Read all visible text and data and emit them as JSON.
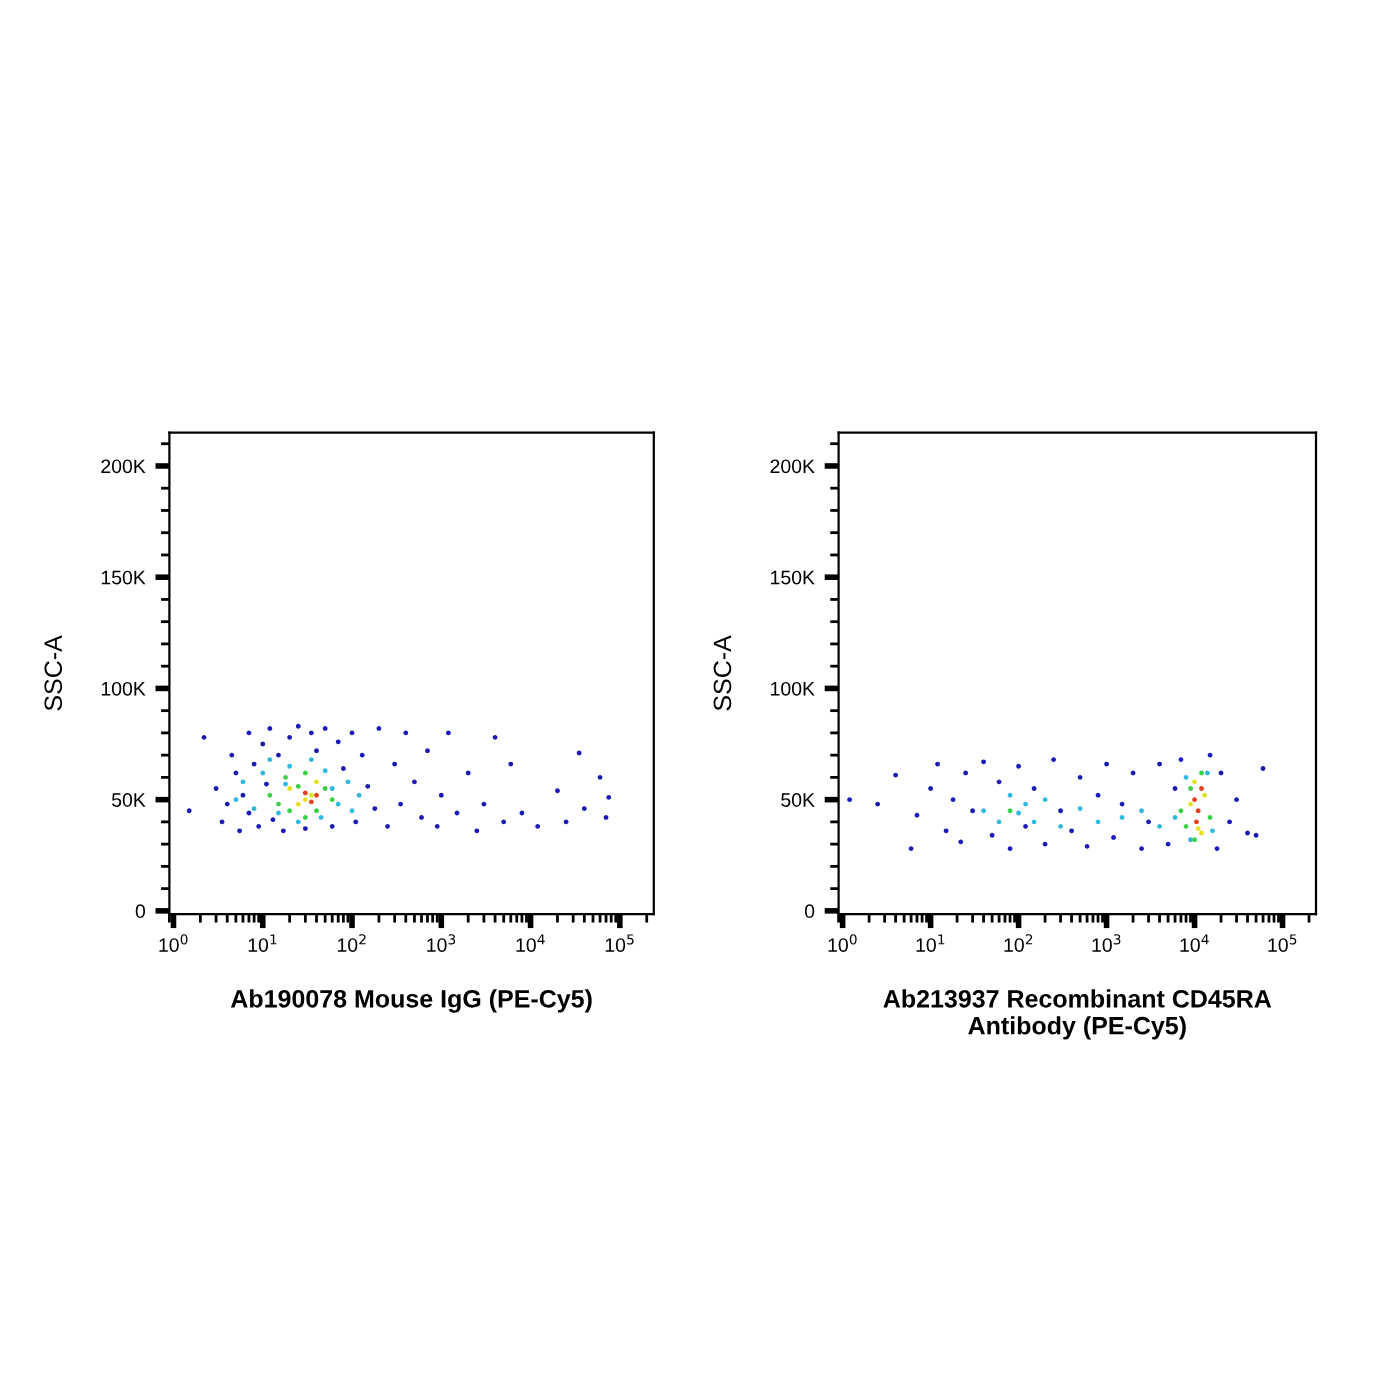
{
  "chart_data": [
    {
      "type": "scatter",
      "xlabel": "Ab190078 Mouse IgG (PE-Cy5)",
      "ylabel": "SSC-A",
      "log": "x",
      "marker": "circle",
      "grid": false,
      "legend": false,
      "xlim": [
        0.9,
        240000
      ],
      "ylim": [
        -1500,
        215000
      ],
      "xticks": [
        {
          "value": 1,
          "label": "10$^{0}$"
        },
        {
          "value": 10,
          "label": "10$^{1}$"
        },
        {
          "value": 100,
          "label": "10$^{2}$"
        },
        {
          "value": 1000,
          "label": "10$^{3}$"
        },
        {
          "value": 10000,
          "label": "10$^{4}$"
        },
        {
          "value": 100000,
          "label": "10$^{5}$"
        }
      ],
      "yticks": [
        0,
        {
          "value": 50000,
          "label": "50K"
        },
        {
          "value": 100000,
          "label": "100K"
        },
        {
          "value": 150000,
          "label": "150K"
        },
        {
          "value": 200000,
          "label": "200K"
        }
      ],
      "series": [
        {
          "color": "#1a1ab4",
          "x": [
            1.5,
            2.2,
            3,
            3.5,
            4,
            4.5,
            5,
            5.5,
            6,
            7,
            7,
            8,
            9,
            10,
            11,
            12,
            13,
            15,
            17,
            20,
            25,
            30,
            35,
            40,
            50,
            60,
            70,
            80,
            100,
            110,
            130,
            150,
            180,
            200,
            250,
            300,
            350,
            400,
            500,
            600,
            700,
            900,
            1000,
            1200,
            1500,
            2000,
            2500,
            3000,
            4000,
            5000,
            6000,
            8000,
            12000,
            20000,
            25000,
            35000,
            40000,
            60000,
            70000,
            75000
          ],
          "values": [
            45000,
            78000,
            55000,
            40000,
            48000,
            70000,
            62000,
            36000,
            52000,
            80000,
            44000,
            66000,
            38000,
            75000,
            57000,
            82000,
            41000,
            70000,
            36000,
            78000,
            83000,
            37000,
            80000,
            72000,
            82000,
            38000,
            76000,
            64000,
            80000,
            40000,
            70000,
            56000,
            46000,
            82000,
            38000,
            66000,
            48000,
            80000,
            58000,
            42000,
            72000,
            38000,
            52000,
            80000,
            44000,
            62000,
            36000,
            48000,
            78000,
            40000,
            66000,
            44000,
            38000,
            54000,
            40000,
            71000,
            46000,
            60000,
            42000,
            51000
          ]
        },
        {
          "color": "#2fb8e0",
          "x": [
            5,
            6,
            8,
            10,
            12,
            15,
            18,
            20,
            25,
            35,
            45,
            50,
            60,
            70,
            90,
            100,
            120
          ],
          "values": [
            50000,
            58000,
            46000,
            62000,
            68000,
            44000,
            57000,
            65000,
            40000,
            68000,
            42000,
            63000,
            55000,
            48000,
            58000,
            45000,
            52000
          ]
        },
        {
          "color": "#3ccf4a",
          "x": [
            12,
            15,
            18,
            20,
            25,
            30,
            40,
            50,
            60,
            30
          ],
          "values": [
            52000,
            48000,
            60000,
            45000,
            56000,
            62000,
            45000,
            55000,
            50000,
            42000
          ]
        },
        {
          "color": "#e6e020",
          "x": [
            20,
            25,
            35,
            40,
            30
          ],
          "values": [
            55000,
            48000,
            52000,
            58000,
            50000
          ]
        },
        {
          "color": "#e8401c",
          "x": [
            30,
            35,
            40
          ],
          "values": [
            53000,
            49000,
            52000
          ]
        }
      ]
    },
    {
      "type": "scatter",
      "xlabel": "Ab213937 Recombinant CD45RA\nAntibody (PE-Cy5)",
      "ylabel": "SSC-A",
      "log": "x",
      "marker": "circle",
      "grid": false,
      "legend": false,
      "xlim": [
        0.9,
        240000
      ],
      "ylim": [
        -1500,
        215000
      ],
      "xticks": [
        {
          "value": 1,
          "label": "10$^{0}$"
        },
        {
          "value": 10,
          "label": "10$^{1}$"
        },
        {
          "value": 100,
          "label": "10$^{2}$"
        },
        {
          "value": 1000,
          "label": "10$^{3}$"
        },
        {
          "value": 10000,
          "label": "10$^{4}$"
        },
        {
          "value": 100000,
          "label": "10$^{5}$"
        }
      ],
      "yticks": [
        0,
        {
          "value": 50000,
          "label": "50K"
        },
        {
          "value": 100000,
          "label": "100K"
        },
        {
          "value": 150000,
          "label": "150K"
        },
        {
          "value": 200000,
          "label": "200K"
        }
      ],
      "series": [
        {
          "color": "#1a1ab4",
          "x": [
            1.2,
            2.5,
            4,
            6,
            7,
            10,
            12,
            15,
            18,
            22,
            25,
            30,
            40,
            50,
            60,
            80,
            100,
            120,
            150,
            200,
            250,
            300,
            400,
            500,
            600,
            800,
            1000,
            1200,
            1500,
            2000,
            2500,
            3000,
            4000,
            5000,
            6000,
            7000,
            15000,
            18000,
            20000,
            25000,
            30000,
            40000,
            50000,
            60000
          ],
          "values": [
            50000,
            48000,
            61000,
            28000,
            43000,
            55000,
            66000,
            36000,
            50000,
            31000,
            62000,
            45000,
            67000,
            34000,
            58000,
            28000,
            65000,
            38000,
            55000,
            30000,
            68000,
            45000,
            36000,
            60000,
            29000,
            52000,
            66000,
            33000,
            48000,
            62000,
            28000,
            40000,
            66000,
            30000,
            55000,
            68000,
            70000,
            28000,
            62000,
            40000,
            50000,
            35000,
            34000,
            64000
          ]
        },
        {
          "color": "#2fb8e0",
          "x": [
            40,
            60,
            80,
            100,
            120,
            150,
            200,
            300,
            500,
            800,
            1500,
            2500,
            4000,
            6000,
            8000,
            9000,
            14000,
            16000
          ],
          "values": [
            45000,
            40000,
            52000,
            44000,
            48000,
            40000,
            50000,
            38000,
            46000,
            40000,
            42000,
            45000,
            38000,
            42000,
            60000,
            32000,
            62000,
            36000
          ]
        },
        {
          "color": "#3ccf4a",
          "x": [
            80,
            7000,
            8000,
            9000,
            12000,
            15000,
            10000
          ],
          "values": [
            45000,
            45000,
            38000,
            55000,
            62000,
            42000,
            32000
          ]
        },
        {
          "color": "#e6e020",
          "x": [
            9000,
            10000,
            11000,
            13000,
            12000
          ],
          "values": [
            48000,
            58000,
            37000,
            52000,
            35000
          ]
        },
        {
          "color": "#e8401c",
          "x": [
            10000,
            11000,
            12000,
            10500
          ],
          "values": [
            50000,
            45000,
            55000,
            40000
          ]
        }
      ]
    }
  ]
}
